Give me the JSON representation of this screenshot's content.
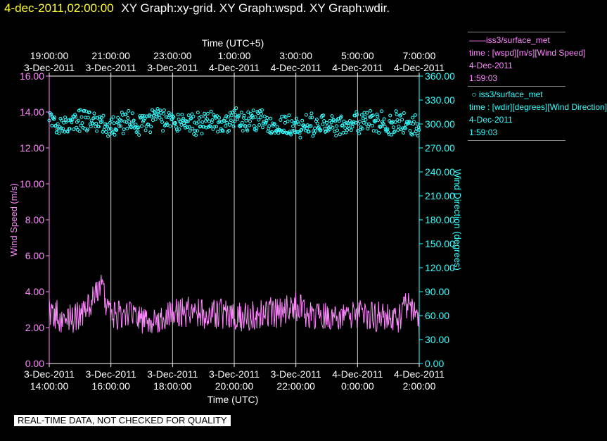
{
  "header": {
    "timestamp": "4-dec-2011,02:00:00",
    "titles": "XY Graph:xy-grid.  XY Graph:wspd.  XY Graph:wdir."
  },
  "legend": [
    {
      "label": "iss3/surface_met",
      "marker": "line",
      "desc": "time : [wspd][m/s][Wind Speed]",
      "date": "4-Dec-2011",
      "time": "1:59:03",
      "color": "#ff88ff"
    },
    {
      "label": "iss3/surface_met",
      "marker": "circle",
      "desc": "time : [wdir][degrees][Wind Direction]",
      "date": "4-Dec-2011",
      "time": "1:59:03",
      "color": "#33ffff"
    }
  ],
  "footer": {
    "quality_note": "REAL-TIME DATA, NOT CHECKED FOR QUALITY"
  },
  "chart_data": {
    "type": "line",
    "xlim": [
      "2011-12-03T14:00",
      "2011-12-04T02:00"
    ],
    "grid": true,
    "xlabel_bottom": "Time (UTC)",
    "xlabel_top": "Time (UTC+5)",
    "ylabel_left": "Wind Speed (m/s)",
    "ylabel_right": "Wind Direction (degrees)",
    "ylim_left": [
      0,
      16
    ],
    "ylim_right": [
      0,
      360
    ],
    "x_ticks_bottom": [
      {
        "t": "2011-12-03T14:00",
        "label1": "3-Dec-2011",
        "label2": "14:00:00"
      },
      {
        "t": "2011-12-03T16:00",
        "label1": "3-Dec-2011",
        "label2": "16:00:00"
      },
      {
        "t": "2011-12-03T18:00",
        "label1": "3-Dec-2011",
        "label2": "18:00:00"
      },
      {
        "t": "2011-12-03T20:00",
        "label1": "3-Dec-2011",
        "label2": "20:00:00"
      },
      {
        "t": "2011-12-03T22:00",
        "label1": "3-Dec-2011",
        "label2": "22:00:00"
      },
      {
        "t": "2011-12-04T00:00",
        "label1": "4-Dec-2011",
        "label2": "0:00:00"
      },
      {
        "t": "2011-12-04T02:00",
        "label1": "4-Dec-2011",
        "label2": "2:00:00"
      }
    ],
    "x_ticks_top": [
      {
        "t": "2011-12-03T14:00",
        "label1": "19:00:00",
        "label2": "3-Dec-2011"
      },
      {
        "t": "2011-12-03T16:00",
        "label1": "21:00:00",
        "label2": "3-Dec-2011"
      },
      {
        "t": "2011-12-03T18:00",
        "label1": "23:00:00",
        "label2": "3-Dec-2011"
      },
      {
        "t": "2011-12-03T20:00",
        "label1": "1:00:00",
        "label2": "4-Dec-2011"
      },
      {
        "t": "2011-12-03T22:00",
        "label1": "3:00:00",
        "label2": "4-Dec-2011"
      },
      {
        "t": "2011-12-04T00:00",
        "label1": "5:00:00",
        "label2": "4-Dec-2011"
      },
      {
        "t": "2011-12-04T02:00",
        "label1": "7:00:00",
        "label2": "4-Dec-2011"
      }
    ],
    "y_ticks_left": [
      "0.00",
      "2.00",
      "4.00",
      "6.00",
      "8.00",
      "10.00",
      "12.00",
      "14.00",
      "16.00"
    ],
    "y_ticks_right": [
      "0.00",
      "30.00",
      "60.00",
      "90.00",
      "120.00",
      "150.00",
      "180.00",
      "210.00",
      "240.00",
      "270.00",
      "300.00",
      "330.00",
      "360.00"
    ],
    "series": [
      {
        "name": "iss3/surface_met time : [wspd][m/s][Wind Speed]",
        "axis": "left",
        "style": "line",
        "color": "#ff88ff",
        "x": [
          "2011-12-03T14:00",
          "2011-12-03T14:30",
          "2011-12-03T15:00",
          "2011-12-03T15:20",
          "2011-12-03T15:40",
          "2011-12-03T16:00",
          "2011-12-03T16:30",
          "2011-12-03T17:00",
          "2011-12-03T17:30",
          "2011-12-03T18:00",
          "2011-12-03T18:30",
          "2011-12-03T19:00",
          "2011-12-03T19:30",
          "2011-12-03T20:00",
          "2011-12-03T20:30",
          "2011-12-03T21:00",
          "2011-12-03T21:30",
          "2011-12-03T22:00",
          "2011-12-03T22:30",
          "2011-12-03T23:00",
          "2011-12-03T23:30",
          "2011-12-04T00:00",
          "2011-12-04T00:30",
          "2011-12-04T01:00",
          "2011-12-04T01:20",
          "2011-12-04T01:40",
          "2011-12-04T01:50",
          "2011-12-04T02:00"
        ],
        "values": [
          3.0,
          2.4,
          2.6,
          3.2,
          4.2,
          2.6,
          2.7,
          2.4,
          2.3,
          2.8,
          2.9,
          2.7,
          2.8,
          2.6,
          2.6,
          2.9,
          2.8,
          3.2,
          2.6,
          2.6,
          2.5,
          2.7,
          2.6,
          2.6,
          2.5,
          3.4,
          3.0,
          2.0
        ]
      },
      {
        "name": "iss3/surface_met time : [wdir][degrees][Wind Direction]",
        "axis": "right",
        "style": "scatter",
        "color": "#33ffff",
        "x": [
          "2011-12-03T14:00",
          "2011-12-03T14:30",
          "2011-12-03T15:00",
          "2011-12-03T15:30",
          "2011-12-03T16:00",
          "2011-12-03T16:30",
          "2011-12-03T17:00",
          "2011-12-03T17:30",
          "2011-12-03T18:00",
          "2011-12-03T18:30",
          "2011-12-03T19:00",
          "2011-12-03T19:30",
          "2011-12-03T20:00",
          "2011-12-03T20:30",
          "2011-12-03T21:00",
          "2011-12-03T21:30",
          "2011-12-03T22:00",
          "2011-12-03T22:30",
          "2011-12-03T23:00",
          "2011-12-03T23:30",
          "2011-12-04T00:00",
          "2011-12-04T00:30",
          "2011-12-04T01:00",
          "2011-12-04T01:30",
          "2011-12-04T02:00"
        ],
        "values": [
          300,
          298,
          304,
          302,
          296,
          302,
          300,
          306,
          304,
          302,
          300,
          304,
          306,
          302,
          304,
          300,
          296,
          300,
          298,
          300,
          302,
          304,
          300,
          302,
          296
        ]
      }
    ]
  }
}
